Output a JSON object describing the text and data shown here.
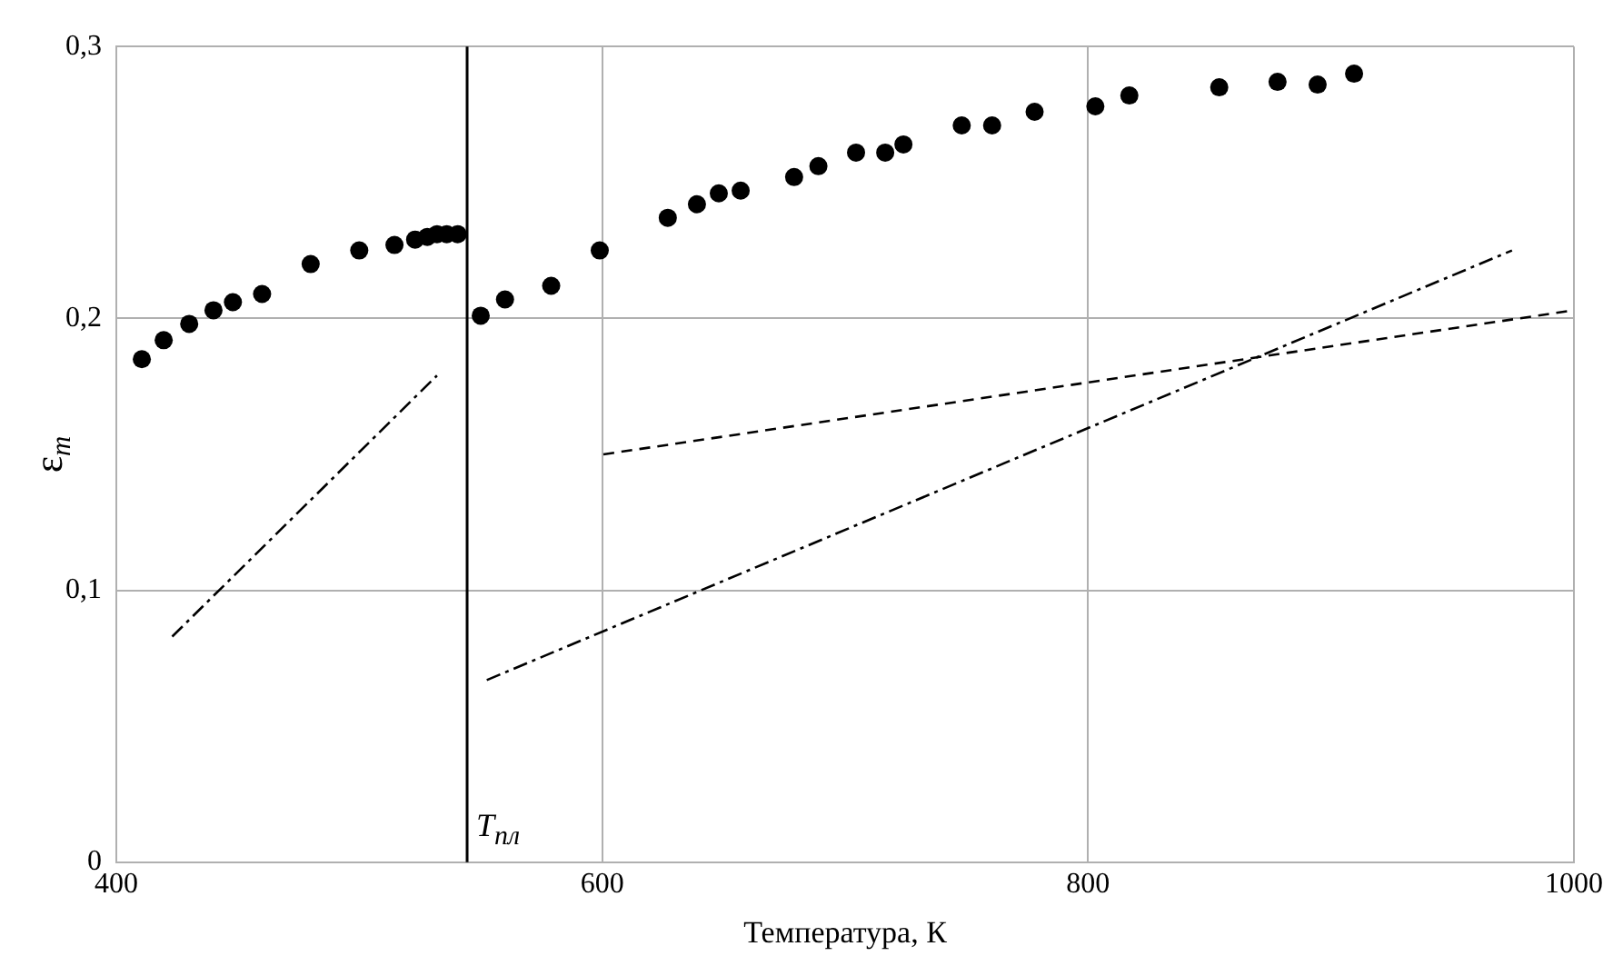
{
  "chart_data": {
    "type": "scatter",
    "xlabel": "Температура, К",
    "ylabel": "ε$_{m}$",
    "xlim": [
      400,
      1000
    ],
    "xticks": [
      400,
      600,
      800,
      1000
    ],
    "ylim": [
      0,
      0.3
    ],
    "yticks": [
      {
        "value": 0,
        "label": "0"
      },
      {
        "value": 0.1,
        "label": "0,1"
      },
      {
        "value": 0.2,
        "label": "0,2"
      },
      {
        "value": 0.3,
        "label": "0,3"
      }
    ],
    "grid": true,
    "series": [
      {
        "type": "scatter",
        "color": "#000000",
        "marker": "circle",
        "x": [
          410.5,
          419.5,
          430,
          440,
          448,
          460,
          480,
          500,
          514.5,
          523,
          528,
          532,
          536,
          540.5,
          550,
          560,
          579,
          599,
          627,
          639,
          648,
          657,
          679,
          689,
          704.5,
          716.5,
          724,
          748,
          760.5,
          778,
          803,
          817,
          854,
          878,
          894.5,
          909.5
        ],
        "values": [
          0.185,
          0.192,
          0.198,
          0.203,
          0.206,
          0.209,
          0.22,
          0.225,
          0.227,
          0.229,
          0.23,
          0.231,
          0.231,
          0.231,
          0.201,
          0.207,
          0.212,
          0.225,
          0.237,
          0.242,
          0.246,
          0.247,
          0.252,
          0.256,
          0.261,
          0.261,
          0.264,
          0.271,
          0.271,
          0.276,
          0.278,
          0.282,
          0.285,
          0.287,
          0.286,
          0.29
        ]
      },
      {
        "type": "line",
        "color": "#000000",
        "marker": "none",
        "line_style": "dashdot",
        "x": [
          423,
          532
        ],
        "values": [
          0.083,
          0.179
        ]
      },
      {
        "type": "line",
        "color": "#000000",
        "marker": "none",
        "line_style": "dashdot",
        "x": [
          552.5,
          974.5
        ],
        "values": [
          0.067,
          0.225
        ]
      },
      {
        "type": "line",
        "color": "#000000",
        "marker": "none",
        "line_style": "dashed",
        "x": [
          600.5,
          1000
        ],
        "values": [
          0.15,
          0.203
        ]
      }
    ],
    "ref_lines": [
      {
        "axis": "x",
        "value": 544.4,
        "label": "T$_{пл}$",
        "color": "#000000"
      }
    ]
  }
}
